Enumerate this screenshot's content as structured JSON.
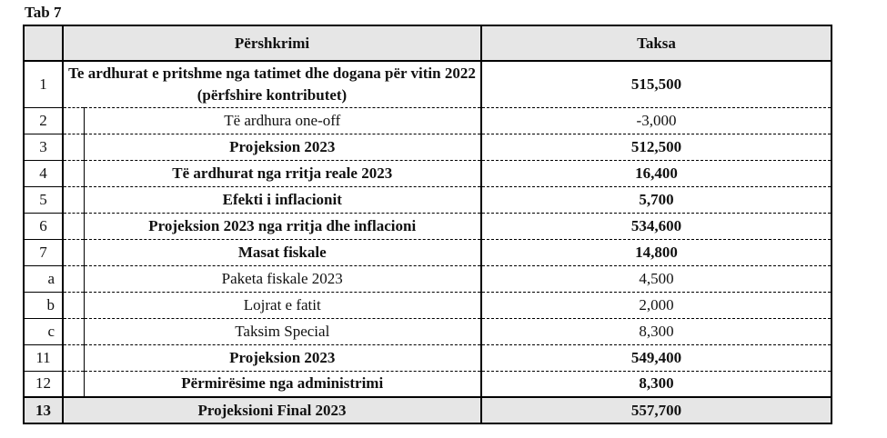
{
  "title": "Tab 7",
  "colors": {
    "header_bg": "#e6e6e6",
    "border": "#000000",
    "text": "#111111"
  },
  "table": {
    "headers": {
      "num": "",
      "description": "Përshkrimi",
      "value": "Taksa"
    },
    "rows": [
      {
        "num": "1",
        "description": "Te ardhurat e pritshme nga tatimet dhe dogana për vitin 2022 (përfshire kontributet)",
        "value": "515,500",
        "bold": true,
        "indent": false,
        "letter": false,
        "shaded": false,
        "tall": true
      },
      {
        "num": "2",
        "description": "Të ardhura one-off",
        "value": "-3,000",
        "bold": false,
        "indent": true,
        "letter": false,
        "shaded": false,
        "tall": false
      },
      {
        "num": "3",
        "description": "Projeksion 2023",
        "value": "512,500",
        "bold": true,
        "indent": true,
        "letter": false,
        "shaded": false,
        "tall": false
      },
      {
        "num": "4",
        "description": "Të ardhurat nga rritja reale 2023",
        "value": "16,400",
        "bold": true,
        "indent": true,
        "letter": false,
        "shaded": false,
        "tall": false
      },
      {
        "num": "5",
        "description": "Efekti i inflacionit",
        "value": "5,700",
        "bold": true,
        "indent": true,
        "letter": false,
        "shaded": false,
        "tall": false
      },
      {
        "num": "6",
        "description": "Projeksion 2023 nga rritja dhe inflacioni",
        "value": "534,600",
        "bold": true,
        "indent": true,
        "letter": false,
        "shaded": false,
        "tall": false
      },
      {
        "num": "7",
        "description": "Masat fiskale",
        "value": "14,800",
        "bold": true,
        "indent": true,
        "letter": false,
        "shaded": false,
        "tall": false
      },
      {
        "num": "a",
        "description": "Paketa fiskale 2023",
        "value": "4,500",
        "bold": false,
        "indent": true,
        "letter": true,
        "shaded": false,
        "tall": false
      },
      {
        "num": "b",
        "description": "Lojrat e fatit",
        "value": "2,000",
        "bold": false,
        "indent": true,
        "letter": true,
        "shaded": false,
        "tall": false
      },
      {
        "num": "c",
        "description": "Taksim Special",
        "value": "8,300",
        "bold": false,
        "indent": true,
        "letter": true,
        "shaded": false,
        "tall": false
      },
      {
        "num": "11",
        "description": "Projeksion 2023",
        "value": "549,400",
        "bold": true,
        "indent": true,
        "letter": false,
        "shaded": false,
        "tall": false
      },
      {
        "num": "12",
        "description": "Përmirësime nga administrimi",
        "value": "8,300",
        "bold": true,
        "indent": true,
        "letter": false,
        "shaded": false,
        "tall": false
      },
      {
        "num": "13",
        "description": "Projeksioni Final 2023",
        "value": "557,700",
        "bold": true,
        "indent": false,
        "letter": false,
        "shaded": true,
        "tall": false
      }
    ]
  }
}
